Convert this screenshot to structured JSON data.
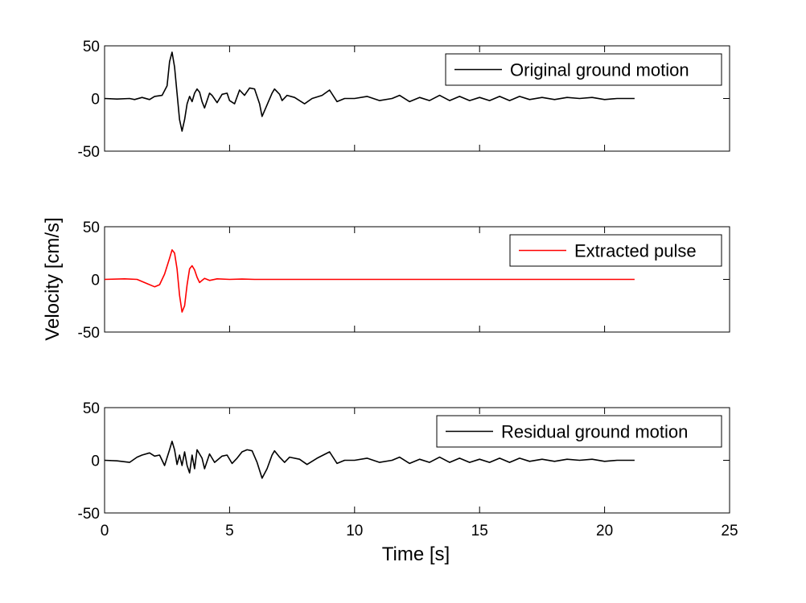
{
  "chart_data": {
    "type": "line",
    "xlabel": "Time [s]",
    "ylabel": "Velocity [cm/s]",
    "xlim": [
      0,
      25
    ],
    "xticks": [
      "0",
      "5",
      "10",
      "15",
      "20",
      "25"
    ],
    "grid": false,
    "panels": [
      {
        "ylim": [
          -50,
          50
        ],
        "yticks": [
          "50",
          "0",
          "-50"
        ],
        "legend_position": "top-right",
        "series": [
          {
            "name": "Original ground motion",
            "color": "#000000",
            "points": [
              [
                0,
                0
              ],
              [
                0.5,
                -0.5
              ],
              [
                1.0,
                0
              ],
              [
                1.2,
                -1
              ],
              [
                1.5,
                1
              ],
              [
                1.8,
                -1
              ],
              [
                2.0,
                2
              ],
              [
                2.3,
                3
              ],
              [
                2.5,
                12
              ],
              [
                2.6,
                35
              ],
              [
                2.7,
                44
              ],
              [
                2.8,
                30
              ],
              [
                2.9,
                5
              ],
              [
                3.0,
                -20
              ],
              [
                3.1,
                -31
              ],
              [
                3.2,
                -20
              ],
              [
                3.3,
                -5
              ],
              [
                3.4,
                2
              ],
              [
                3.5,
                -3
              ],
              [
                3.6,
                5
              ],
              [
                3.7,
                9
              ],
              [
                3.8,
                6
              ],
              [
                3.9,
                -3
              ],
              [
                4.0,
                -9
              ],
              [
                4.2,
                5
              ],
              [
                4.3,
                3
              ],
              [
                4.5,
                -4
              ],
              [
                4.7,
                4
              ],
              [
                4.9,
                5
              ],
              [
                5.0,
                -2
              ],
              [
                5.2,
                -5
              ],
              [
                5.4,
                8
              ],
              [
                5.6,
                3
              ],
              [
                5.8,
                10
              ],
              [
                6.0,
                9
              ],
              [
                6.2,
                -5
              ],
              [
                6.3,
                -17
              ],
              [
                6.5,
                -6
              ],
              [
                6.7,
                5
              ],
              [
                6.8,
                9
              ],
              [
                7.0,
                4
              ],
              [
                7.1,
                -2
              ],
              [
                7.3,
                3
              ],
              [
                7.6,
                1
              ],
              [
                8.0,
                -5
              ],
              [
                8.3,
                0
              ],
              [
                8.7,
                3
              ],
              [
                9.0,
                8
              ],
              [
                9.3,
                -3
              ],
              [
                9.6,
                0
              ],
              [
                10,
                0
              ],
              [
                10.5,
                2
              ],
              [
                11.0,
                -2
              ],
              [
                11.5,
                0
              ],
              [
                11.8,
                3
              ],
              [
                12.2,
                -3
              ],
              [
                12.6,
                1
              ],
              [
                13.0,
                -2
              ],
              [
                13.4,
                3
              ],
              [
                13.8,
                -2
              ],
              [
                14.2,
                2
              ],
              [
                14.6,
                -2
              ],
              [
                15.0,
                1
              ],
              [
                15.4,
                -2
              ],
              [
                15.8,
                2
              ],
              [
                16.2,
                -2
              ],
              [
                16.6,
                2
              ],
              [
                17.0,
                -1
              ],
              [
                17.5,
                1
              ],
              [
                18.0,
                -1
              ],
              [
                18.5,
                1
              ],
              [
                19.0,
                0
              ],
              [
                19.5,
                1
              ],
              [
                20.0,
                -1
              ],
              [
                20.5,
                0
              ],
              [
                21.2,
                0
              ]
            ]
          }
        ]
      },
      {
        "ylim": [
          -50,
          50
        ],
        "yticks": [
          "50",
          "0",
          "-50"
        ],
        "legend_position": "top-right",
        "series": [
          {
            "name": "Extracted pulse",
            "color": "#ff0000",
            "points": [
              [
                0,
                0
              ],
              [
                0.8,
                0.5
              ],
              [
                1.3,
                0
              ],
              [
                1.7,
                -4
              ],
              [
                2.0,
                -7
              ],
              [
                2.2,
                -5
              ],
              [
                2.4,
                5
              ],
              [
                2.6,
                20
              ],
              [
                2.7,
                28
              ],
              [
                2.8,
                25
              ],
              [
                2.9,
                10
              ],
              [
                3.0,
                -15
              ],
              [
                3.1,
                -31
              ],
              [
                3.2,
                -25
              ],
              [
                3.3,
                -5
              ],
              [
                3.4,
                10
              ],
              [
                3.5,
                13
              ],
              [
                3.6,
                9
              ],
              [
                3.7,
                2
              ],
              [
                3.8,
                -3
              ],
              [
                3.9,
                -1
              ],
              [
                4.0,
                1
              ],
              [
                4.2,
                -1
              ],
              [
                4.5,
                0.5
              ],
              [
                5.0,
                0
              ],
              [
                5.5,
                0.3
              ],
              [
                6.0,
                0
              ],
              [
                21.2,
                0
              ]
            ]
          }
        ]
      },
      {
        "ylim": [
          -50,
          50
        ],
        "yticks": [
          "50",
          "0",
          "-50"
        ],
        "legend_position": "top-right",
        "series": [
          {
            "name": "Residual ground motion",
            "color": "#000000",
            "points": [
              [
                0,
                0
              ],
              [
                0.5,
                -0.5
              ],
              [
                1.0,
                -2
              ],
              [
                1.3,
                3
              ],
              [
                1.5,
                5
              ],
              [
                1.8,
                7
              ],
              [
                2.0,
                4
              ],
              [
                2.2,
                5
              ],
              [
                2.4,
                -5
              ],
              [
                2.6,
                10
              ],
              [
                2.7,
                18
              ],
              [
                2.8,
                10
              ],
              [
                2.9,
                -4
              ],
              [
                3.0,
                5
              ],
              [
                3.1,
                -5
              ],
              [
                3.2,
                8
              ],
              [
                3.3,
                -5
              ],
              [
                3.4,
                -12
              ],
              [
                3.5,
                5
              ],
              [
                3.6,
                -8
              ],
              [
                3.7,
                10
              ],
              [
                3.9,
                2
              ],
              [
                4.0,
                -8
              ],
              [
                4.2,
                6
              ],
              [
                4.4,
                -2
              ],
              [
                4.7,
                4
              ],
              [
                4.9,
                5
              ],
              [
                5.1,
                -3
              ],
              [
                5.3,
                2
              ],
              [
                5.5,
                8
              ],
              [
                5.7,
                10
              ],
              [
                5.9,
                9
              ],
              [
                6.1,
                -2
              ],
              [
                6.3,
                -17
              ],
              [
                6.5,
                -8
              ],
              [
                6.7,
                5
              ],
              [
                6.8,
                9
              ],
              [
                7.0,
                3
              ],
              [
                7.2,
                -2
              ],
              [
                7.4,
                3
              ],
              [
                7.8,
                1
              ],
              [
                8.1,
                -4
              ],
              [
                8.5,
                2
              ],
              [
                9.0,
                8
              ],
              [
                9.3,
                -3
              ],
              [
                9.6,
                0
              ],
              [
                10,
                0
              ],
              [
                10.5,
                2
              ],
              [
                11.0,
                -2
              ],
              [
                11.5,
                0
              ],
              [
                11.8,
                3
              ],
              [
                12.2,
                -3
              ],
              [
                12.6,
                1
              ],
              [
                13.0,
                -2
              ],
              [
                13.4,
                3
              ],
              [
                13.8,
                -2
              ],
              [
                14.2,
                2
              ],
              [
                14.6,
                -2
              ],
              [
                15.0,
                1
              ],
              [
                15.4,
                -2
              ],
              [
                15.8,
                2
              ],
              [
                16.2,
                -2
              ],
              [
                16.6,
                2
              ],
              [
                17.0,
                -1
              ],
              [
                17.5,
                1
              ],
              [
                18.0,
                -1
              ],
              [
                18.5,
                1
              ],
              [
                19.0,
                0
              ],
              [
                19.5,
                1
              ],
              [
                20.0,
                -1
              ],
              [
                20.5,
                0
              ],
              [
                21.2,
                0
              ]
            ]
          }
        ]
      }
    ]
  }
}
